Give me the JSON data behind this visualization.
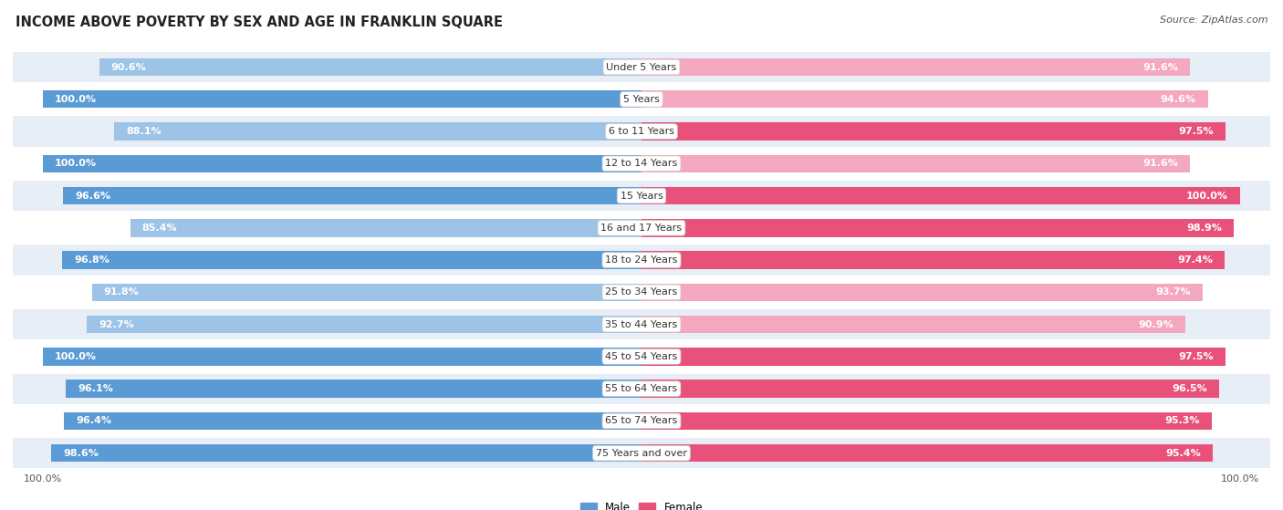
{
  "title": "INCOME ABOVE POVERTY BY SEX AND AGE IN FRANKLIN SQUARE",
  "source": "Source: ZipAtlas.com",
  "categories": [
    "Under 5 Years",
    "5 Years",
    "6 to 11 Years",
    "12 to 14 Years",
    "15 Years",
    "16 and 17 Years",
    "18 to 24 Years",
    "25 to 34 Years",
    "35 to 44 Years",
    "45 to 54 Years",
    "55 to 64 Years",
    "65 to 74 Years",
    "75 Years and over"
  ],
  "male": [
    90.6,
    100.0,
    88.1,
    100.0,
    96.6,
    85.4,
    96.8,
    91.8,
    92.7,
    100.0,
    96.1,
    96.4,
    98.6
  ],
  "female": [
    91.6,
    94.6,
    97.5,
    91.6,
    100.0,
    98.9,
    97.4,
    93.7,
    90.9,
    97.5,
    96.5,
    95.3,
    95.4
  ],
  "male_color_full": "#5b9bd5",
  "male_color_light": "#9dc3e6",
  "female_color_full": "#e8527a",
  "female_color_light": "#f4a8bf",
  "male_label": "Male",
  "female_label": "Female",
  "bar_height": 0.55,
  "bg_color": "#ffffff",
  "row_color_odd": "#e8eef5",
  "row_color_even": "#ffffff",
  "title_fontsize": 10.5,
  "label_fontsize": 8.0,
  "bar_label_fontsize": 8.0,
  "tick_fontsize": 8.0,
  "source_fontsize": 8,
  "xlim": 105
}
